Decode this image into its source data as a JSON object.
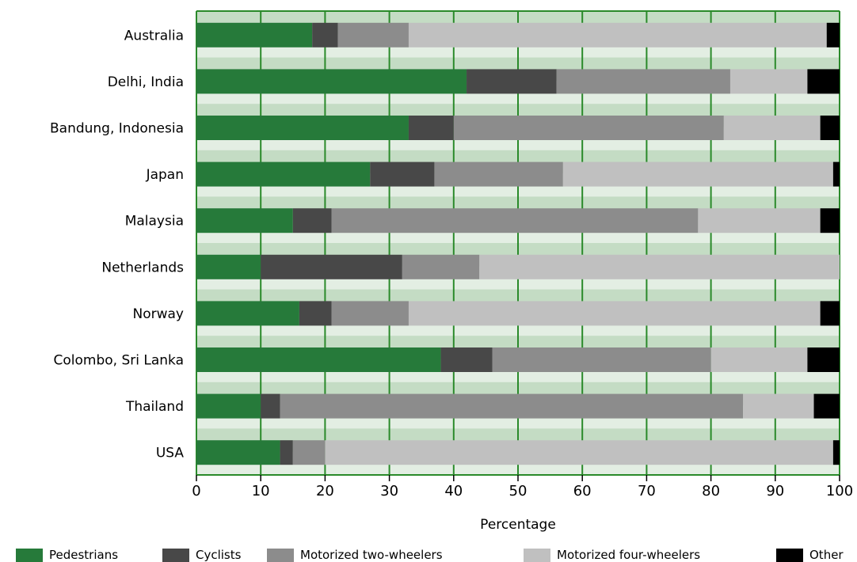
{
  "chart_data": {
    "type": "bar",
    "orientation": "horizontal",
    "stacked": true,
    "categories": [
      "Australia",
      "Delhi, India",
      "Bandung, Indonesia",
      "Japan",
      "Malaysia",
      "Netherlands",
      "Norway",
      "Colombo, Sri Lanka",
      "Thailand",
      "USA"
    ],
    "series": [
      {
        "name": "Pedestrians",
        "color": "#267a3a",
        "values": [
          18,
          42,
          33,
          27,
          15,
          10,
          16,
          38,
          10,
          13
        ]
      },
      {
        "name": "Cyclists",
        "color": "#484848",
        "values": [
          4,
          14,
          7,
          10,
          6,
          22,
          5,
          8,
          3,
          2
        ]
      },
      {
        "name": "Motorized two-wheelers",
        "color": "#8c8c8c",
        "values": [
          11,
          27,
          42,
          20,
          57,
          12,
          12,
          34,
          72,
          5
        ]
      },
      {
        "name": "Motorized four-wheelers",
        "color": "#c0c0c0",
        "values": [
          65,
          12,
          15,
          42,
          19,
          56,
          64,
          15,
          11,
          79
        ]
      },
      {
        "name": "Other",
        "color": "#000000",
        "values": [
          2,
          5,
          3,
          1,
          3,
          0,
          3,
          5,
          4,
          1
        ]
      }
    ],
    "xlabel": "Percentage",
    "ylabel": "",
    "xlim": [
      0,
      100
    ],
    "xticks": [
      0,
      10,
      20,
      30,
      40,
      50,
      60,
      70,
      80,
      90,
      100
    ],
    "grid": true,
    "background_band_colors": [
      "#c4dcc4",
      "#e3eee3"
    ],
    "grid_color": "#2a8a2a",
    "legend_position": "bottom"
  }
}
